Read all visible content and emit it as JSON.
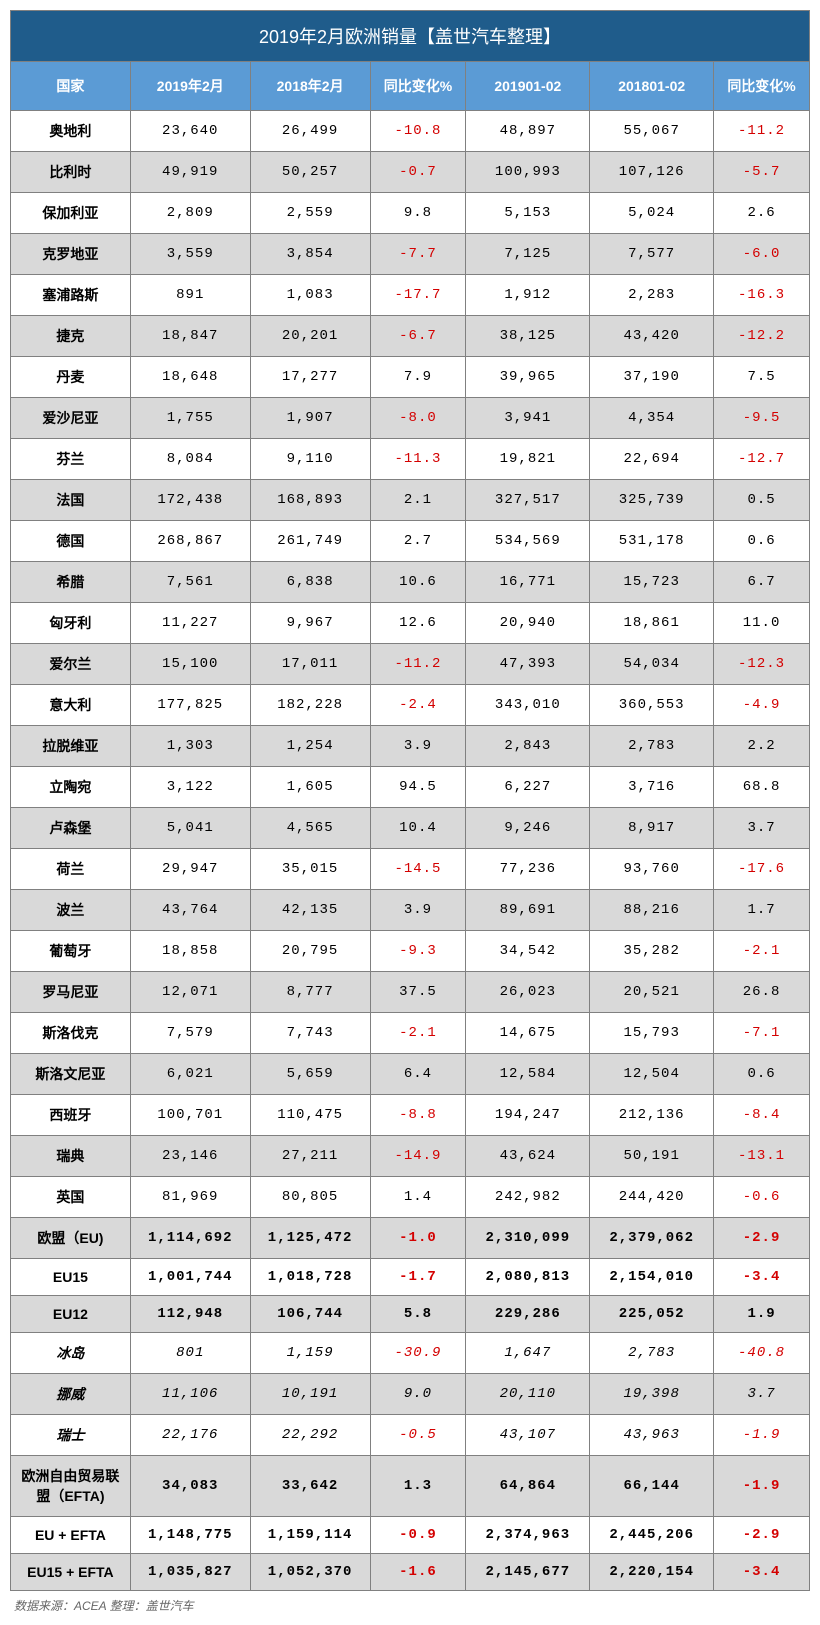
{
  "title": "2019年2月欧洲销量【盖世汽车整理】",
  "columns": [
    "国家",
    "2019年2月",
    "2018年2月",
    "同比变化%",
    "201901-02",
    "201801-02",
    "同比变化%"
  ],
  "col_widths": [
    "15%",
    "15%",
    "15%",
    "12%",
    "15.5%",
    "15.5%",
    "12%"
  ],
  "colors": {
    "title_bg": "#1f5c8b",
    "header_bg": "#5b9bd5",
    "alt_row_bg": "#d9d9d9",
    "negative": "#d40000",
    "border": "#808080"
  },
  "rows": [
    {
      "c": "奥地利",
      "v": [
        "23,640",
        "26,499",
        "-10.8",
        "48,897",
        "55,067",
        "-11.2"
      ]
    },
    {
      "c": "比利时",
      "v": [
        "49,919",
        "50,257",
        "-0.7",
        "100,993",
        "107,126",
        "-5.7"
      ]
    },
    {
      "c": "保加利亚",
      "v": [
        "2,809",
        "2,559",
        "9.8",
        "5,153",
        "5,024",
        "2.6"
      ]
    },
    {
      "c": "克罗地亚",
      "v": [
        "3,559",
        "3,854",
        "-7.7",
        "7,125",
        "7,577",
        "-6.0"
      ]
    },
    {
      "c": "塞浦路斯",
      "v": [
        "891",
        "1,083",
        "-17.7",
        "1,912",
        "2,283",
        "-16.3"
      ]
    },
    {
      "c": "捷克",
      "v": [
        "18,847",
        "20,201",
        "-6.7",
        "38,125",
        "43,420",
        "-12.2"
      ]
    },
    {
      "c": "丹麦",
      "v": [
        "18,648",
        "17,277",
        "7.9",
        "39,965",
        "37,190",
        "7.5"
      ]
    },
    {
      "c": "爱沙尼亚",
      "v": [
        "1,755",
        "1,907",
        "-8.0",
        "3,941",
        "4,354",
        "-9.5"
      ]
    },
    {
      "c": "芬兰",
      "v": [
        "8,084",
        "9,110",
        "-11.3",
        "19,821",
        "22,694",
        "-12.7"
      ]
    },
    {
      "c": "法国",
      "v": [
        "172,438",
        "168,893",
        "2.1",
        "327,517",
        "325,739",
        "0.5"
      ]
    },
    {
      "c": "德国",
      "v": [
        "268,867",
        "261,749",
        "2.7",
        "534,569",
        "531,178",
        "0.6"
      ]
    },
    {
      "c": "希腊",
      "v": [
        "7,561",
        "6,838",
        "10.6",
        "16,771",
        "15,723",
        "6.7"
      ]
    },
    {
      "c": "匈牙利",
      "v": [
        "11,227",
        "9,967",
        "12.6",
        "20,940",
        "18,861",
        "11.0"
      ]
    },
    {
      "c": "爱尔兰",
      "v": [
        "15,100",
        "17,011",
        "-11.2",
        "47,393",
        "54,034",
        "-12.3"
      ]
    },
    {
      "c": "意大利",
      "v": [
        "177,825",
        "182,228",
        "-2.4",
        "343,010",
        "360,553",
        "-4.9"
      ]
    },
    {
      "c": "拉脱维亚",
      "v": [
        "1,303",
        "1,254",
        "3.9",
        "2,843",
        "2,783",
        "2.2"
      ]
    },
    {
      "c": "立陶宛",
      "v": [
        "3,122",
        "1,605",
        "94.5",
        "6,227",
        "3,716",
        "68.8"
      ]
    },
    {
      "c": "卢森堡",
      "v": [
        "5,041",
        "4,565",
        "10.4",
        "9,246",
        "8,917",
        "3.7"
      ]
    },
    {
      "c": "荷兰",
      "v": [
        "29,947",
        "35,015",
        "-14.5",
        "77,236",
        "93,760",
        "-17.6"
      ]
    },
    {
      "c": "波兰",
      "v": [
        "43,764",
        "42,135",
        "3.9",
        "89,691",
        "88,216",
        "1.7"
      ]
    },
    {
      "c": "葡萄牙",
      "v": [
        "18,858",
        "20,795",
        "-9.3",
        "34,542",
        "35,282",
        "-2.1"
      ]
    },
    {
      "c": "罗马尼亚",
      "v": [
        "12,071",
        "8,777",
        "37.5",
        "26,023",
        "20,521",
        "26.8"
      ]
    },
    {
      "c": "斯洛伐克",
      "v": [
        "7,579",
        "7,743",
        "-2.1",
        "14,675",
        "15,793",
        "-7.1"
      ]
    },
    {
      "c": "斯洛文尼亚",
      "v": [
        "6,021",
        "5,659",
        "6.4",
        "12,584",
        "12,504",
        "0.6"
      ]
    },
    {
      "c": "西班牙",
      "v": [
        "100,701",
        "110,475",
        "-8.8",
        "194,247",
        "212,136",
        "-8.4"
      ]
    },
    {
      "c": "瑞典",
      "v": [
        "23,146",
        "27,211",
        "-14.9",
        "43,624",
        "50,191",
        "-13.1"
      ]
    },
    {
      "c": "英国",
      "v": [
        "81,969",
        "80,805",
        "1.4",
        "242,982",
        "244,420",
        "-0.6"
      ]
    },
    {
      "c": "欧盟（EU)",
      "v": [
        "1,114,692",
        "1,125,472",
        "-1.0",
        "2,310,099",
        "2,379,062",
        "-2.9"
      ],
      "bold": true
    },
    {
      "c": "EU15",
      "v": [
        "1,001,744",
        "1,018,728",
        "-1.7",
        "2,080,813",
        "2,154,010",
        "-3.4"
      ],
      "bold": true
    },
    {
      "c": "EU12",
      "v": [
        "112,948",
        "106,744",
        "5.8",
        "229,286",
        "225,052",
        "1.9"
      ],
      "bold": true
    },
    {
      "c": "冰岛",
      "v": [
        "801",
        "1,159",
        "-30.9",
        "1,647",
        "2,783",
        "-40.8"
      ],
      "italic": true
    },
    {
      "c": "挪威",
      "v": [
        "11,106",
        "10,191",
        "9.0",
        "20,110",
        "19,398",
        "3.7"
      ],
      "italic": true
    },
    {
      "c": "瑞士",
      "v": [
        "22,176",
        "22,292",
        "-0.5",
        "43,107",
        "43,963",
        "-1.9"
      ],
      "italic": true
    },
    {
      "c": "欧洲自由贸易联盟（EFTA)",
      "v": [
        "34,083",
        "33,642",
        "1.3",
        "64,864",
        "66,144",
        "-1.9"
      ],
      "bold": true
    },
    {
      "c": "EU + EFTA",
      "v": [
        "1,148,775",
        "1,159,114",
        "-0.9",
        "2,374,963",
        "2,445,206",
        "-2.9"
      ],
      "bold": true
    },
    {
      "c": "EU15 + EFTA",
      "v": [
        "1,035,827",
        "1,052,370",
        "-1.6",
        "2,145,677",
        "2,220,154",
        "-3.4"
      ],
      "bold": true
    }
  ],
  "footer": "数据来源：ACEA 整理：盖世汽车"
}
